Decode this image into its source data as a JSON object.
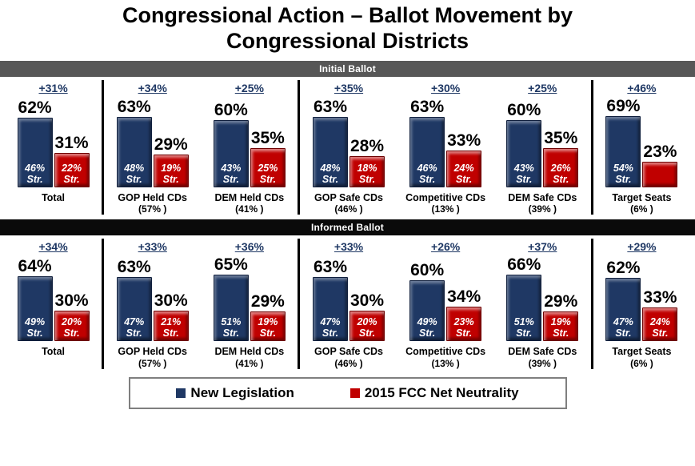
{
  "title": "Congressional Action – Ballot Movement by Congressional Districts",
  "str_label": "Str.",
  "legend": [
    {
      "name": "New Legislation",
      "color": "#1f3864"
    },
    {
      "name": "2015 FCC Net Neutrality",
      "color": "#c00000"
    }
  ],
  "chart_data": {
    "type": "bar",
    "title": "Congressional Action – Ballot Movement by Congressional Districts",
    "unit": "%",
    "ylim": [
      0,
      100
    ],
    "series_names": [
      "New Legislation",
      "2015 FCC Net Neutrality"
    ],
    "sections": [
      {
        "band": "Initial Ballot",
        "band_color": "#575757",
        "groups": [
          {
            "category": "Total",
            "sub": "",
            "delta": "+31%",
            "blue": {
              "value": 62,
              "str": 46
            },
            "red": {
              "value": 31,
              "str": 22
            }
          },
          {
            "category": "GOP Held CDs",
            "sub": "(57% )",
            "delta": "+34%",
            "blue": {
              "value": 63,
              "str": 48
            },
            "red": {
              "value": 29,
              "str": 19
            }
          },
          {
            "category": "DEM Held CDs",
            "sub": "(41% )",
            "delta": "+25%",
            "blue": {
              "value": 60,
              "str": 43
            },
            "red": {
              "value": 35,
              "str": 25
            }
          },
          {
            "category": "GOP Safe CDs",
            "sub": "(46% )",
            "delta": "+35%",
            "blue": {
              "value": 63,
              "str": 48
            },
            "red": {
              "value": 28,
              "str": 18
            }
          },
          {
            "category": "Competitive CDs",
            "sub": "(13% )",
            "delta": "+30%",
            "blue": {
              "value": 63,
              "str": 46
            },
            "red": {
              "value": 33,
              "str": 24
            }
          },
          {
            "category": "DEM Safe CDs",
            "sub": "(39% )",
            "delta": "+25%",
            "blue": {
              "value": 60,
              "str": 43
            },
            "red": {
              "value": 35,
              "str": 26
            }
          },
          {
            "category": "Target Seats",
            "sub": "(6% )",
            "delta": "+46%",
            "blue": {
              "value": 69,
              "str": 54
            },
            "red": {
              "value": 23,
              "str": null
            }
          }
        ]
      },
      {
        "band": "Informed Ballot",
        "band_color": "#0a0a0a",
        "groups": [
          {
            "category": "Total",
            "sub": "",
            "delta": "+34%",
            "blue": {
              "value": 64,
              "str": 49
            },
            "red": {
              "value": 30,
              "str": 20
            }
          },
          {
            "category": "GOP Held CDs",
            "sub": "(57% )",
            "delta": "+33%",
            "blue": {
              "value": 63,
              "str": 47
            },
            "red": {
              "value": 30,
              "str": 21
            }
          },
          {
            "category": "DEM Held CDs",
            "sub": "(41% )",
            "delta": "+36%",
            "blue": {
              "value": 65,
              "str": 51
            },
            "red": {
              "value": 29,
              "str": 19
            }
          },
          {
            "category": "GOP Safe CDs",
            "sub": "(46% )",
            "delta": "+33%",
            "blue": {
              "value": 63,
              "str": 47
            },
            "red": {
              "value": 30,
              "str": 20
            }
          },
          {
            "category": "Competitive CDs",
            "sub": "(13% )",
            "delta": "+26%",
            "blue": {
              "value": 60,
              "str": 49
            },
            "red": {
              "value": 34,
              "str": 23
            }
          },
          {
            "category": "DEM Safe CDs",
            "sub": "(39% )",
            "delta": "+37%",
            "blue": {
              "value": 66,
              "str": 51
            },
            "red": {
              "value": 29,
              "str": 19
            }
          },
          {
            "category": "Target Seats",
            "sub": "(6% )",
            "delta": "+29%",
            "blue": {
              "value": 62,
              "str": 47
            },
            "red": {
              "value": 33,
              "str": 24
            }
          }
        ]
      }
    ]
  }
}
